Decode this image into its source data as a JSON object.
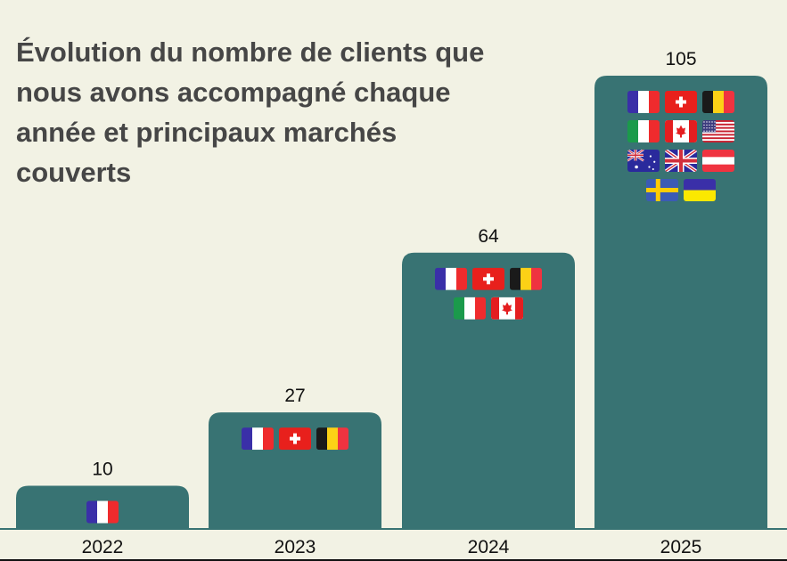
{
  "chart_data": {
    "type": "bar",
    "title": "Évolution du nombre de clients que nous avons accompagné chaque année et principaux marchés couverts",
    "categories": [
      "2022",
      "2023",
      "2024",
      "2025"
    ],
    "values": [
      10,
      27,
      64,
      105
    ],
    "ylim": [
      0,
      105
    ],
    "xlabel": "",
    "ylabel": "",
    "bar_color": "#387373",
    "markets": [
      [
        "france"
      ],
      [
        "france",
        "switzerland",
        "belgium"
      ],
      [
        "france",
        "switzerland",
        "belgium",
        "italy",
        "canada"
      ],
      [
        "france",
        "switzerland",
        "belgium",
        "italy",
        "canada",
        "united-states",
        "australia",
        "united-kingdom",
        "austria",
        "sweden",
        "ukraine"
      ]
    ]
  }
}
